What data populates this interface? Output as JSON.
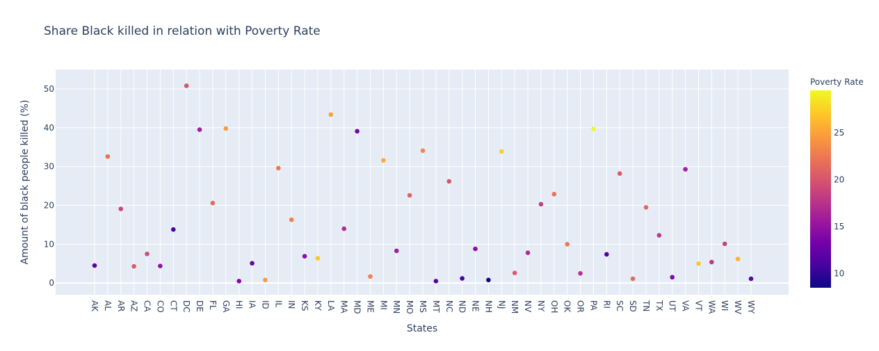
{
  "chart_data": {
    "type": "scatter",
    "title": "Share Black killed in relation with Poverty Rate",
    "xlabel": "States",
    "ylabel": "Amount of black people killed (%)",
    "ylim": [
      -3,
      55
    ],
    "yticks": [
      0,
      10,
      20,
      30,
      40,
      50
    ],
    "grid": true,
    "colorbar": {
      "title": "Poverty Rate",
      "range": [
        8.5,
        29.5
      ],
      "ticks": [
        10,
        15,
        20,
        25
      ],
      "colorscale": [
        "#0d0887",
        "#46039f",
        "#7201a8",
        "#9c179e",
        "#bd3786",
        "#d8576b",
        "#ed7953",
        "#fb9f3a",
        "#fdca26",
        "#f0f921"
      ]
    },
    "points": [
      {
        "state": "AK",
        "y": 4.5,
        "poverty": 12
      },
      {
        "state": "AL",
        "y": 32.6,
        "poverty": 22
      },
      {
        "state": "AR",
        "y": 19.1,
        "poverty": 19
      },
      {
        "state": "AZ",
        "y": 4.3,
        "poverty": 20.5
      },
      {
        "state": "CA",
        "y": 7.5,
        "poverty": 19.5
      },
      {
        "state": "CO",
        "y": 4.4,
        "poverty": 15
      },
      {
        "state": "CT",
        "y": 13.8,
        "poverty": 11
      },
      {
        "state": "DC",
        "y": 50.8,
        "poverty": 20
      },
      {
        "state": "DE",
        "y": 39.5,
        "poverty": 16
      },
      {
        "state": "FL",
        "y": 20.6,
        "poverty": 21.5
      },
      {
        "state": "GA",
        "y": 39.8,
        "poverty": 24.5
      },
      {
        "state": "HI",
        "y": 0.5,
        "poverty": 14
      },
      {
        "state": "IA",
        "y": 5.1,
        "poverty": 13
      },
      {
        "state": "ID",
        "y": 0.8,
        "poverty": 24.5
      },
      {
        "state": "IL",
        "y": 29.6,
        "poverty": 22.5
      },
      {
        "state": "IN",
        "y": 16.3,
        "poverty": 23
      },
      {
        "state": "KS",
        "y": 6.9,
        "poverty": 14.5
      },
      {
        "state": "KY",
        "y": 6.4,
        "poverty": 27
      },
      {
        "state": "LA",
        "y": 43.4,
        "poverty": 25
      },
      {
        "state": "MA",
        "y": 14.0,
        "poverty": 17
      },
      {
        "state": "MD",
        "y": 39.1,
        "poverty": 13.5
      },
      {
        "state": "ME",
        "y": 1.7,
        "poverty": 23
      },
      {
        "state": "MI",
        "y": 31.6,
        "poverty": 25.5
      },
      {
        "state": "MN",
        "y": 8.3,
        "poverty": 16
      },
      {
        "state": "MO",
        "y": 22.6,
        "poverty": 21
      },
      {
        "state": "MS",
        "y": 34.1,
        "poverty": 23.5
      },
      {
        "state": "MT",
        "y": 0.5,
        "poverty": 12
      },
      {
        "state": "NC",
        "y": 26.2,
        "poverty": 20
      },
      {
        "state": "ND",
        "y": 1.2,
        "poverty": 11
      },
      {
        "state": "NE",
        "y": 8.8,
        "poverty": 14.5
      },
      {
        "state": "NH",
        "y": 0.8,
        "poverty": 8.8
      },
      {
        "state": "NJ",
        "y": 33.9,
        "poverty": 27.5
      },
      {
        "state": "NM",
        "y": 2.6,
        "poverty": 20.5
      },
      {
        "state": "NV",
        "y": 7.8,
        "poverty": 17
      },
      {
        "state": "NY",
        "y": 20.3,
        "poverty": 18.5
      },
      {
        "state": "OH",
        "y": 22.9,
        "poverty": 22
      },
      {
        "state": "OK",
        "y": 10.0,
        "poverty": 22.5
      },
      {
        "state": "OR",
        "y": 2.5,
        "poverty": 17.5
      },
      {
        "state": "PA",
        "y": 39.7,
        "poverty": 29.5
      },
      {
        "state": "RI",
        "y": 7.4,
        "poverty": 11.5
      },
      {
        "state": "SC",
        "y": 28.2,
        "poverty": 20.5
      },
      {
        "state": "SD",
        "y": 1.1,
        "poverty": 21.5
      },
      {
        "state": "TN",
        "y": 19.5,
        "poverty": 21.5
      },
      {
        "state": "TX",
        "y": 12.3,
        "poverty": 18
      },
      {
        "state": "UT",
        "y": 1.5,
        "poverty": 14
      },
      {
        "state": "VA",
        "y": 29.3,
        "poverty": 16
      },
      {
        "state": "VT",
        "y": 5.0,
        "poverty": 27
      },
      {
        "state": "WA",
        "y": 5.4,
        "poverty": 18
      },
      {
        "state": "WI",
        "y": 10.1,
        "poverty": 18.5
      },
      {
        "state": "WV",
        "y": 6.2,
        "poverty": 26
      },
      {
        "state": "WY",
        "y": 1.1,
        "poverty": 12.5
      }
    ]
  }
}
